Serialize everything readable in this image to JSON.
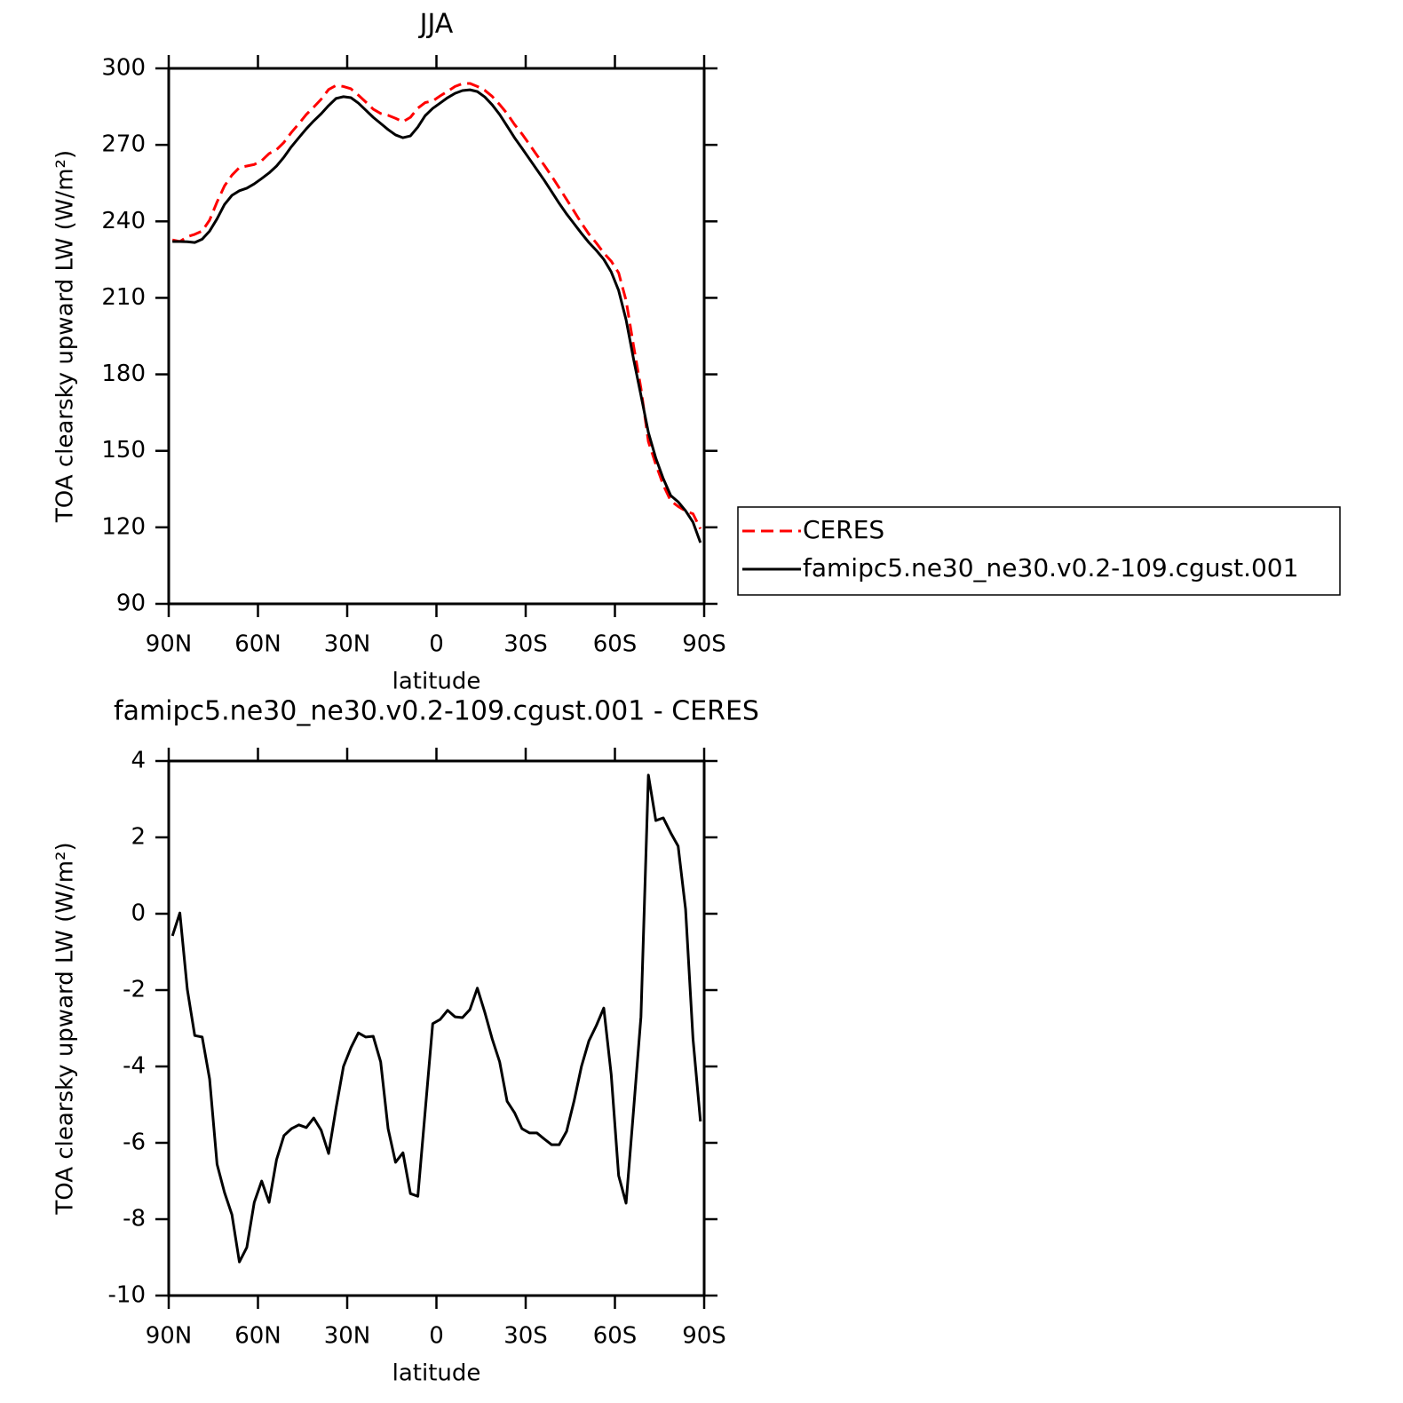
{
  "chart_data": [
    {
      "type": "line",
      "title": "JJA",
      "x_label": "latitude",
      "y_label": "TOA clearsky upward LW (W/m²)",
      "x": [
        88.75,
        86.25,
        83.75,
        81.25,
        78.75,
        76.25,
        73.75,
        71.25,
        68.75,
        66.25,
        63.75,
        61.25,
        58.75,
        56.25,
        53.75,
        51.25,
        48.75,
        46.25,
        43.75,
        41.25,
        38.75,
        36.25,
        33.75,
        31.25,
        28.75,
        26.25,
        23.75,
        21.25,
        18.75,
        16.25,
        13.75,
        11.25,
        8.75,
        6.25,
        3.75,
        1.25,
        -1.25,
        -3.75,
        -6.25,
        -8.75,
        -11.25,
        -13.75,
        -16.25,
        -18.75,
        -21.25,
        -23.75,
        -26.25,
        -28.75,
        -31.25,
        -33.75,
        -36.25,
        -38.75,
        -41.25,
        -43.75,
        -46.25,
        -48.75,
        -51.25,
        -53.75,
        -56.25,
        -58.75,
        -61.25,
        -63.75,
        -66.25,
        -68.75,
        -71.25,
        -73.75,
        -76.25,
        -78.75,
        -81.25,
        -83.75,
        -86.25,
        -88.75
      ],
      "xlim": [
        90,
        -90
      ],
      "xticks": [
        {
          "value": 90,
          "label": "90N"
        },
        {
          "value": 60,
          "label": "60N"
        },
        {
          "value": 30,
          "label": "30N"
        },
        0,
        {
          "value": -30,
          "label": "30S"
        },
        {
          "value": -60,
          "label": "60S"
        },
        {
          "value": -90,
          "label": "90S"
        }
      ],
      "ylim": [
        90,
        300
      ],
      "yticks": [
        90,
        120,
        150,
        180,
        210,
        240,
        270,
        300
      ],
      "legend": "right",
      "series": [
        {
          "name": "CERES",
          "color": "#ff0000",
          "dash": "dashed",
          "values": [
            232.7,
            232.1,
            234.0,
            234.9,
            236.2,
            240.5,
            247.6,
            253.9,
            258.1,
            261.1,
            261.7,
            262.3,
            263.8,
            266.6,
            268.1,
            271.0,
            274.9,
            278.3,
            281.9,
            284.8,
            287.9,
            291.7,
            293.3,
            292.9,
            292.0,
            289.5,
            286.8,
            284.0,
            282.3,
            281.6,
            280.4,
            279.1,
            280.8,
            284.4,
            286.6,
            287.2,
            289.2,
            291.0,
            292.9,
            294.0,
            294.1,
            292.9,
            291.4,
            289.0,
            285.8,
            282.3,
            278.0,
            274.3,
            270.2,
            266.0,
            262.0,
            257.7,
            253.2,
            248.6,
            244.0,
            239.3,
            235.0,
            231.5,
            227.6,
            224.4,
            219.8,
            209.0,
            191.3,
            174.5,
            153.6,
            144.7,
            136.6,
            130.4,
            128.2,
            126.4,
            125.3,
            119.4
          ]
        },
        {
          "name": "famipc5.ne30_ne30.v0.2-109.cgust.001",
          "color": "#000000",
          "dash": "solid",
          "values": [
            232.1,
            232.1,
            232.0,
            231.7,
            233.0,
            236.2,
            241.0,
            246.6,
            250.2,
            252.0,
            253.0,
            254.7,
            256.8,
            259.0,
            261.7,
            265.2,
            269.3,
            272.8,
            276.3,
            279.4,
            282.2,
            285.4,
            288.2,
            288.9,
            288.5,
            286.4,
            283.6,
            280.8,
            278.4,
            276.0,
            273.9,
            272.8,
            273.5,
            277.0,
            281.5,
            284.3,
            286.4,
            288.5,
            290.2,
            291.3,
            291.6,
            290.9,
            288.8,
            285.7,
            281.9,
            277.4,
            272.8,
            268.7,
            264.5,
            260.3,
            256.1,
            251.6,
            247.1,
            242.9,
            239.1,
            235.3,
            231.7,
            228.6,
            225.1,
            220.2,
            212.9,
            201.4,
            186.1,
            171.8,
            157.2,
            147.1,
            139.1,
            132.5,
            130.0,
            126.5,
            122.0,
            114.0
          ]
        }
      ]
    },
    {
      "type": "line",
      "title": "famipc5.ne30_ne30.v0.2-109.cgust.001 - CERES",
      "x_label": "latitude",
      "y_label": "TOA clearsky upward LW (W/m²)",
      "x": [
        88.75,
        86.25,
        83.75,
        81.25,
        78.75,
        76.25,
        73.75,
        71.25,
        68.75,
        66.25,
        63.75,
        61.25,
        58.75,
        56.25,
        53.75,
        51.25,
        48.75,
        46.25,
        43.75,
        41.25,
        38.75,
        36.25,
        33.75,
        31.25,
        28.75,
        26.25,
        23.75,
        21.25,
        18.75,
        16.25,
        13.75,
        11.25,
        8.75,
        6.25,
        3.75,
        1.25,
        -1.25,
        -3.75,
        -6.25,
        -8.75,
        -11.25,
        -13.75,
        -16.25,
        -18.75,
        -21.25,
        -23.75,
        -26.25,
        -28.75,
        -31.25,
        -33.75,
        -36.25,
        -38.75,
        -41.25,
        -43.75,
        -46.25,
        -48.75,
        -51.25,
        -53.75,
        -56.25,
        -58.75,
        -61.25,
        -63.75,
        -66.25,
        -68.75,
        -71.25,
        -73.75,
        -76.25,
        -78.75,
        -81.25,
        -83.75,
        -86.25,
        -88.75
      ],
      "xlim": [
        90,
        -90
      ],
      "xticks": [
        {
          "value": 90,
          "label": "90N"
        },
        {
          "value": 60,
          "label": "60N"
        },
        {
          "value": 30,
          "label": "30N"
        },
        0,
        {
          "value": -30,
          "label": "30S"
        },
        {
          "value": -60,
          "label": "60S"
        },
        {
          "value": -90,
          "label": "90S"
        }
      ],
      "ylim": [
        -10,
        4
      ],
      "yticks": [
        -10,
        -8,
        -6,
        -4,
        -2,
        0,
        2,
        4
      ],
      "color": "#000000",
      "values": [
        -0.58,
        0.02,
        -1.98,
        -3.19,
        -3.23,
        -4.33,
        -6.56,
        -7.3,
        -7.88,
        -9.12,
        -8.74,
        -7.56,
        -7.0,
        -7.56,
        -6.44,
        -5.81,
        -5.63,
        -5.53,
        -5.6,
        -5.35,
        -5.67,
        -6.28,
        -5.09,
        -4.0,
        -3.51,
        -3.12,
        -3.23,
        -3.21,
        -3.88,
        -5.63,
        -6.51,
        -6.26,
        -7.33,
        -7.4,
        -5.14,
        -2.88,
        -2.77,
        -2.53,
        -2.7,
        -2.72,
        -2.51,
        -1.95,
        -2.58,
        -3.28,
        -3.88,
        -4.91,
        -5.21,
        -5.63,
        -5.74,
        -5.74,
        -5.9,
        -6.05,
        -6.05,
        -5.7,
        -4.91,
        -4.0,
        -3.33,
        -2.93,
        -2.47,
        -4.21,
        -6.86,
        -7.58,
        -5.16,
        -2.7,
        3.63,
        2.44,
        2.51,
        2.12,
        1.77,
        0.12,
        -3.28,
        -5.44
      ]
    }
  ]
}
